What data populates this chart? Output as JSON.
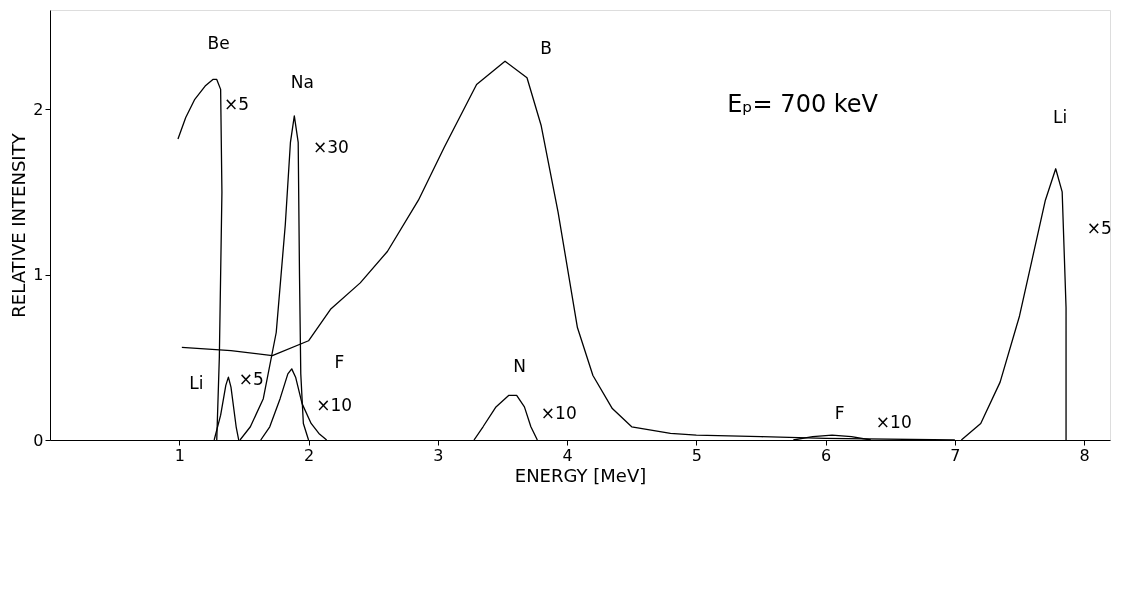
{
  "chart_data": {
    "type": "line",
    "xlabel": "ENERGY [MeV]",
    "ylabel": "RELATIVE INTENSITY",
    "xlim": [
      0,
      8.2
    ],
    "ylim": [
      0,
      2.6
    ],
    "xticks": [
      1,
      2,
      3,
      4,
      5,
      6,
      7,
      8
    ],
    "yticks": [
      0,
      1,
      2
    ],
    "grid": false,
    "legend": false,
    "marker": "none",
    "line_style": "solid",
    "series": [
      {
        "color": "#000000",
        "x": [
          0.99,
          1.05,
          1.12,
          1.2,
          1.26,
          1.29,
          1.32,
          1.33,
          1.31,
          1.29
        ],
        "values": [
          1.82,
          1.95,
          2.06,
          2.14,
          2.18,
          2.18,
          2.12,
          1.5,
          0.5,
          0
        ]
      },
      {
        "color": "#000000",
        "x": [
          1.47,
          1.55,
          1.65,
          1.75,
          1.82,
          1.86,
          1.89,
          1.92,
          1.93,
          1.94,
          1.96,
          2.0
        ],
        "values": [
          0,
          0.08,
          0.25,
          0.65,
          1.3,
          1.8,
          1.96,
          1.8,
          1.0,
          0.4,
          0.1,
          0
        ]
      },
      {
        "color": "#000000",
        "x": [
          1.27,
          1.32,
          1.36,
          1.38,
          1.4,
          1.44,
          1.46
        ],
        "values": [
          0,
          0.15,
          0.33,
          0.38,
          0.32,
          0.08,
          0
        ]
      },
      {
        "color": "#000000",
        "x": [
          1.63,
          1.7,
          1.78,
          1.84,
          1.87,
          1.9,
          1.95,
          2.02,
          2.08,
          2.14
        ],
        "values": [
          0,
          0.08,
          0.25,
          0.4,
          0.43,
          0.38,
          0.22,
          0.1,
          0.04,
          0
        ]
      },
      {
        "color": "#000000",
        "x": [
          1.02,
          1.4,
          1.72,
          2.0,
          2.17,
          2.4,
          2.61,
          2.85,
          3.05,
          3.3,
          3.52,
          3.69,
          3.8,
          3.93,
          4.08,
          4.2,
          4.35,
          4.5,
          4.8,
          5.0,
          5.5,
          6.0,
          7.0
        ],
        "values": [
          0.56,
          0.54,
          0.51,
          0.6,
          0.79,
          0.95,
          1.14,
          1.45,
          1.77,
          2.15,
          2.29,
          2.19,
          1.9,
          1.38,
          0.68,
          0.39,
          0.19,
          0.08,
          0.04,
          0.03,
          0.02,
          0.01,
          0
        ]
      },
      {
        "color": "#000000",
        "x": [
          3.28,
          3.35,
          3.45,
          3.55,
          3.61,
          3.67,
          3.72,
          3.77
        ],
        "values": [
          0,
          0.08,
          0.2,
          0.27,
          0.27,
          0.2,
          0.08,
          0
        ]
      },
      {
        "color": "#000000",
        "x": [
          5.75,
          5.9,
          6.05,
          6.2,
          6.35
        ],
        "values": [
          0,
          0.02,
          0.03,
          0.02,
          0
        ]
      },
      {
        "color": "#000000",
        "x": [
          7.05,
          7.2,
          7.35,
          7.5,
          7.6,
          7.7,
          7.78,
          7.83,
          7.86,
          7.86
        ],
        "values": [
          0,
          0.1,
          0.35,
          0.75,
          1.1,
          1.45,
          1.64,
          1.5,
          0.8,
          0
        ]
      }
    ],
    "annotations": [
      "Be",
      "×5",
      "Na",
      "×30",
      "B",
      "Li",
      "×5",
      "F",
      "×10",
      "N",
      "×10",
      "F",
      "×10",
      "Li",
      "×5",
      "Eₚ= 700 keV"
    ]
  }
}
